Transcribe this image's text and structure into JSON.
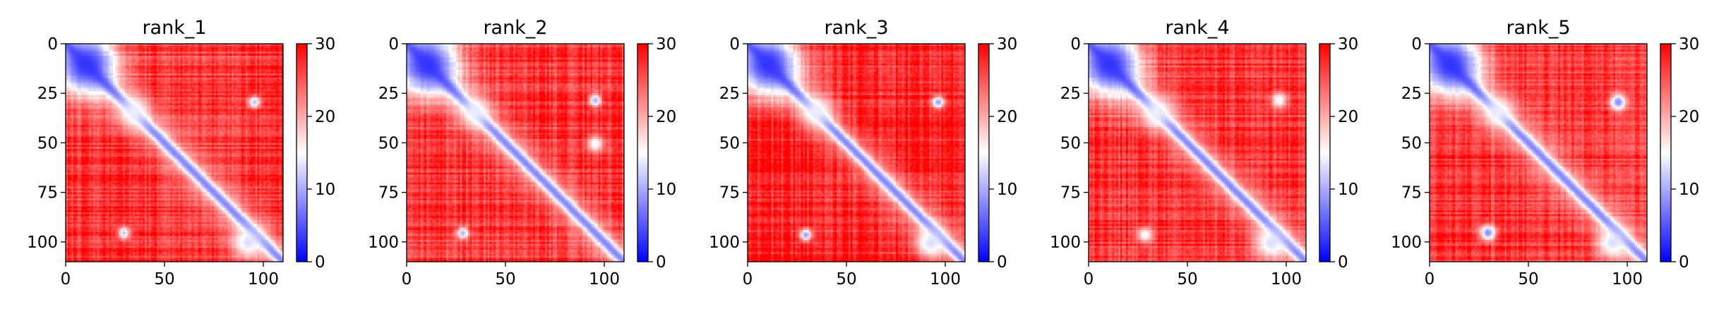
{
  "figure": {
    "panel_count": 5
  },
  "chart_data": [
    {
      "type": "heatmap",
      "title": "rank_1",
      "xlabel": "",
      "ylabel": "",
      "xlim": [
        0,
        110
      ],
      "ylim": [
        110,
        0
      ],
      "x_ticks": [
        0,
        50,
        100
      ],
      "y_ticks": [
        0,
        25,
        50,
        75,
        100
      ],
      "colorbar": {
        "colormap": "bwr",
        "vmin": 0,
        "vmax": 30,
        "ticks": [
          0,
          10,
          20,
          30
        ]
      },
      "matrix_size": 110,
      "diagonal_band_value": 2,
      "off_diagonal_level": 27,
      "features": [
        {
          "x": 10,
          "y": 10,
          "r": 16,
          "v": 3
        },
        {
          "x": 34,
          "y": 34,
          "r": 8,
          "v": 14
        },
        {
          "x": 95,
          "y": 29,
          "r": 3,
          "v": 11
        },
        {
          "x": 29,
          "y": 95,
          "r": 3,
          "v": 11
        },
        {
          "x": 92,
          "y": 100,
          "r": 8,
          "v": 13
        }
      ]
    },
    {
      "type": "heatmap",
      "title": "rank_2",
      "xlabel": "",
      "ylabel": "",
      "xlim": [
        0,
        110
      ],
      "ylim": [
        110,
        0
      ],
      "x_ticks": [
        0,
        50,
        100
      ],
      "y_ticks": [
        0,
        25,
        50,
        75,
        100
      ],
      "colorbar": {
        "colormap": "bwr",
        "vmin": 0,
        "vmax": 30,
        "ticks": [
          0,
          10,
          20,
          30
        ]
      },
      "matrix_size": 110,
      "diagonal_band_value": 2,
      "off_diagonal_level": 27,
      "features": [
        {
          "x": 10,
          "y": 10,
          "r": 16,
          "v": 3
        },
        {
          "x": 34,
          "y": 34,
          "r": 8,
          "v": 14
        },
        {
          "x": 95,
          "y": 28,
          "r": 3,
          "v": 10
        },
        {
          "x": 28,
          "y": 95,
          "r": 3,
          "v": 10
        },
        {
          "x": 95,
          "y": 50,
          "r": 4,
          "v": 14
        }
      ]
    },
    {
      "type": "heatmap",
      "title": "rank_3",
      "xlabel": "",
      "ylabel": "",
      "xlim": [
        0,
        110
      ],
      "ylim": [
        110,
        0
      ],
      "x_ticks": [
        0,
        50,
        100
      ],
      "y_ticks": [
        0,
        25,
        50,
        75,
        100
      ],
      "colorbar": {
        "colormap": "bwr",
        "vmin": 0,
        "vmax": 30,
        "ticks": [
          0,
          10,
          20,
          30
        ]
      },
      "matrix_size": 110,
      "diagonal_band_value": 2,
      "off_diagonal_level": 28,
      "features": [
        {
          "x": 10,
          "y": 10,
          "r": 16,
          "v": 3
        },
        {
          "x": 34,
          "y": 34,
          "r": 8,
          "v": 14
        },
        {
          "x": 96,
          "y": 29,
          "r": 3,
          "v": 9
        },
        {
          "x": 29,
          "y": 96,
          "r": 3,
          "v": 9
        },
        {
          "x": 92,
          "y": 100,
          "r": 8,
          "v": 13
        }
      ]
    },
    {
      "type": "heatmap",
      "title": "rank_4",
      "xlabel": "",
      "ylabel": "",
      "xlim": [
        0,
        110
      ],
      "ylim": [
        110,
        0
      ],
      "x_ticks": [
        0,
        50,
        100
      ],
      "y_ticks": [
        0,
        25,
        50,
        75,
        100
      ],
      "colorbar": {
        "colormap": "bwr",
        "vmin": 0,
        "vmax": 30,
        "ticks": [
          0,
          10,
          20,
          30
        ]
      },
      "matrix_size": 110,
      "diagonal_band_value": 2,
      "off_diagonal_level": 27,
      "features": [
        {
          "x": 10,
          "y": 10,
          "r": 16,
          "v": 3
        },
        {
          "x": 34,
          "y": 34,
          "r": 8,
          "v": 14
        },
        {
          "x": 96,
          "y": 28,
          "r": 4,
          "v": 14
        },
        {
          "x": 28,
          "y": 96,
          "r": 4,
          "v": 14
        },
        {
          "x": 92,
          "y": 100,
          "r": 8,
          "v": 13
        }
      ]
    },
    {
      "type": "heatmap",
      "title": "rank_5",
      "xlabel": "",
      "ylabel": "",
      "xlim": [
        0,
        110
      ],
      "ylim": [
        110,
        0
      ],
      "x_ticks": [
        0,
        50,
        100
      ],
      "y_ticks": [
        0,
        25,
        50,
        75,
        100
      ],
      "colorbar": {
        "colormap": "bwr",
        "vmin": 0,
        "vmax": 30,
        "ticks": [
          0,
          10,
          20,
          30
        ]
      },
      "matrix_size": 110,
      "diagonal_band_value": 2,
      "off_diagonal_level": 27,
      "features": [
        {
          "x": 10,
          "y": 10,
          "r": 16,
          "v": 3
        },
        {
          "x": 34,
          "y": 34,
          "r": 8,
          "v": 14
        },
        {
          "x": 95,
          "y": 29,
          "r": 4,
          "v": 8
        },
        {
          "x": 29,
          "y": 95,
          "r": 4,
          "v": 8
        },
        {
          "x": 92,
          "y": 100,
          "r": 8,
          "v": 13
        }
      ]
    }
  ]
}
